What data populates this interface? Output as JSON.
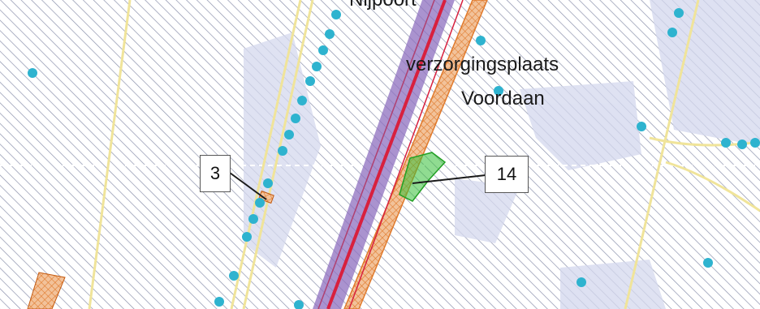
{
  "map": {
    "labels": {
      "top_place": "Nijpoort",
      "rest_area_line1": "verzorgingsplaats",
      "rest_area_line2": "Voordaan"
    },
    "callouts": [
      {
        "id": "callout-3",
        "label": "3"
      },
      {
        "id": "callout-14",
        "label": "14"
      }
    ]
  },
  "colors": {
    "hatch": "#8d93ad",
    "landuse_fill": "#d4d8ee",
    "road_yellow": "#f0e49a",
    "rail_red": "#d8203e",
    "rail_purple": "#8e6fbf",
    "zone_orange": "#e07a2c",
    "marker_cyan": "#2eb3cf",
    "green_area": "#34c036",
    "leader_line": "#1a1a1a"
  },
  "icons": {
    "point_marker": "cyan-dot",
    "green_feature": "green-polygon"
  }
}
